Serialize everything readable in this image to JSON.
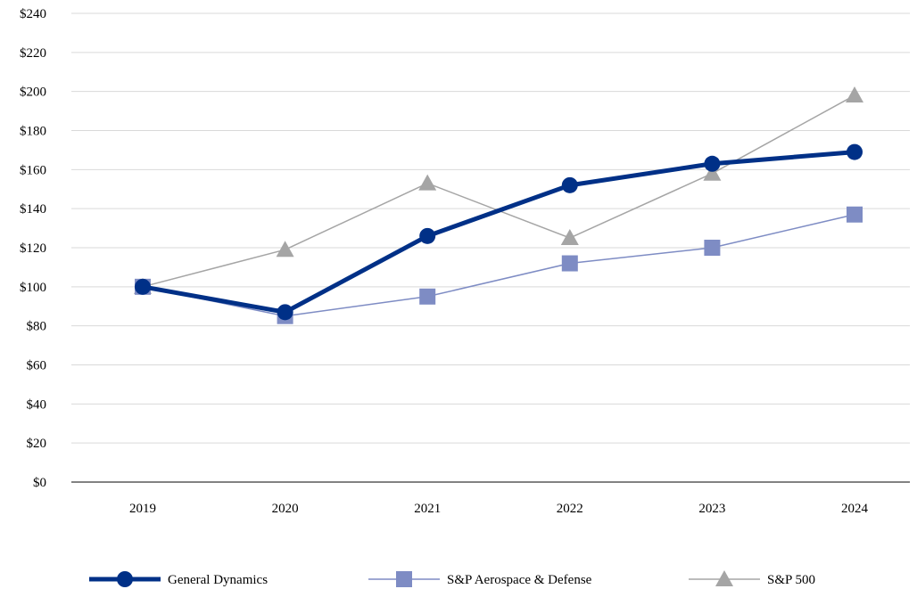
{
  "chart_data": {
    "type": "line",
    "categories": [
      "2019",
      "2020",
      "2021",
      "2022",
      "2023",
      "2024"
    ],
    "series": [
      {
        "name": "General Dynamics",
        "values": [
          100,
          87,
          126,
          152,
          163,
          169
        ],
        "color": "#003087",
        "marker": "circle"
      },
      {
        "name": "S&P Aerospace & Defense",
        "values": [
          100,
          85,
          95,
          112,
          120,
          137
        ],
        "color": "#7e8cc4",
        "marker": "square"
      },
      {
        "name": "S&P 500",
        "values": [
          100,
          119,
          153,
          125,
          158,
          198
        ],
        "color": "#a5a5a5",
        "marker": "triangle"
      }
    ],
    "ylim": [
      0,
      240
    ],
    "yticks": [
      "$0",
      "$20",
      "$40",
      "$60",
      "$80",
      "$100",
      "$120",
      "$140",
      "$160",
      "$180",
      "$200",
      "$220",
      "$240"
    ],
    "grid": true,
    "legend_position": "bottom"
  }
}
